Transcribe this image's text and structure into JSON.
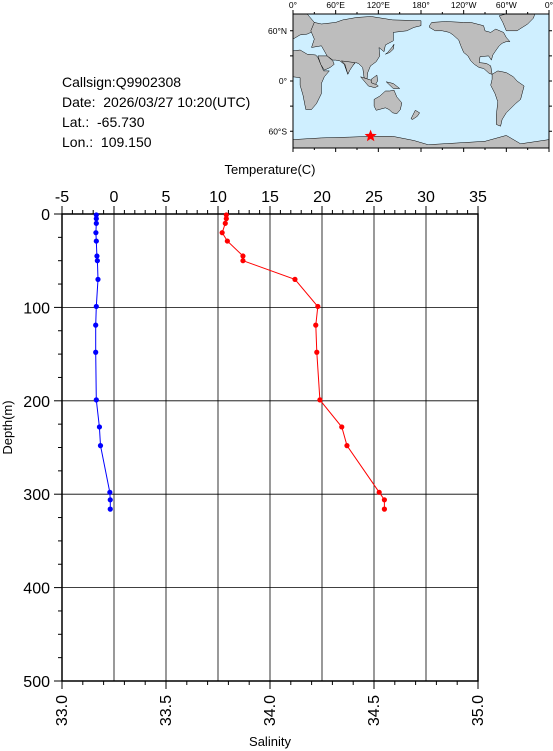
{
  "info": {
    "callsign": "Callsign:Q9902308",
    "date": "Date:  2026/03/27 10:20(UTC)",
    "lat": "Lat.:  -65.730",
    "lon": "Lon.:  109.150"
  },
  "map": {
    "top_labels": [
      "0°",
      "60°E",
      "120°E",
      "180°",
      "120°W",
      "60°W",
      "0°"
    ],
    "left_labels": [
      "60°N",
      "0°",
      "60°S"
    ],
    "ocean_color": "#cfefff",
    "land_color": "#bdbdbd",
    "marker_color": "#ff0000",
    "marker_icon": "star-icon",
    "marker_lat": -65.73,
    "marker_lon": 109.15
  },
  "chart_data": {
    "type": "line",
    "y_axis": {
      "label": "Depth(m)",
      "range": [
        0,
        500
      ],
      "ticks": [
        "0",
        "100",
        "200",
        "300",
        "400",
        "500"
      ],
      "inverted": true
    },
    "x_axis_top": {
      "label": "Temperature(C)",
      "range": [
        -5,
        35
      ],
      "ticks": [
        "-5",
        "0",
        "5",
        "10",
        "15",
        "20",
        "25",
        "30",
        "35"
      ]
    },
    "x_axis_bottom": {
      "label": "Salinity",
      "range": [
        33.0,
        35.0
      ],
      "ticks": [
        "33.0",
        "33.5",
        "34.0",
        "34.5",
        "35.0"
      ]
    },
    "grid": true,
    "series": [
      {
        "axis": "top",
        "color": "#ff0000",
        "points": [
          {
            "depth": 1,
            "value": 10.8
          },
          {
            "depth": 5,
            "value": 10.8
          },
          {
            "depth": 10,
            "value": 10.7
          },
          {
            "depth": 20,
            "value": 10.4
          },
          {
            "depth": 29,
            "value": 10.9
          },
          {
            "depth": 45,
            "value": 12.4
          },
          {
            "depth": 50,
            "value": 12.4
          },
          {
            "depth": 70,
            "value": 17.4
          },
          {
            "depth": 99,
            "value": 19.6
          },
          {
            "depth": 119,
            "value": 19.4
          },
          {
            "depth": 148,
            "value": 19.5
          },
          {
            "depth": 199,
            "value": 19.8
          },
          {
            "depth": 228,
            "value": 21.9
          },
          {
            "depth": 248,
            "value": 22.4
          },
          {
            "depth": 298,
            "value": 25.5
          },
          {
            "depth": 306,
            "value": 26.0
          },
          {
            "depth": 316,
            "value": 26.0
          }
        ]
      },
      {
        "axis": "bottom",
        "color": "#0000ff",
        "points": [
          {
            "depth": 1,
            "value": 33.165
          },
          {
            "depth": 5,
            "value": 33.165
          },
          {
            "depth": 10,
            "value": 33.165
          },
          {
            "depth": 20,
            "value": 33.163
          },
          {
            "depth": 29,
            "value": 33.165
          },
          {
            "depth": 45,
            "value": 33.168
          },
          {
            "depth": 50,
            "value": 33.17
          },
          {
            "depth": 70,
            "value": 33.173
          },
          {
            "depth": 99,
            "value": 33.165
          },
          {
            "depth": 119,
            "value": 33.162
          },
          {
            "depth": 148,
            "value": 33.162
          },
          {
            "depth": 199,
            "value": 33.165
          },
          {
            "depth": 228,
            "value": 33.18
          },
          {
            "depth": 248,
            "value": 33.185
          },
          {
            "depth": 298,
            "value": 33.23
          },
          {
            "depth": 306,
            "value": 33.232
          },
          {
            "depth": 316,
            "value": 33.232
          }
        ]
      }
    ]
  }
}
